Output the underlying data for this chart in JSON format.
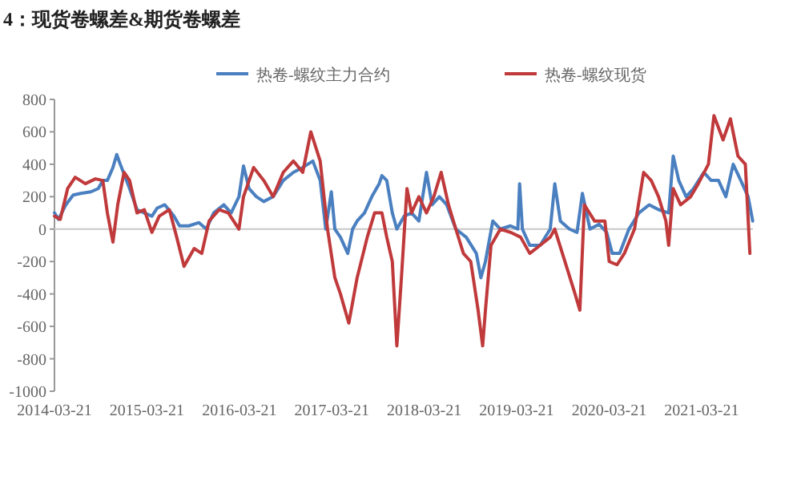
{
  "chart_data": {
    "type": "line",
    "title": "4：现货卷螺差&期货卷螺差",
    "legend": "top",
    "xlim": [
      "2014-03-21",
      "2021-10-10"
    ],
    "xticks": [
      "2014-03-21",
      "2015-03-21",
      "2016-03-21",
      "2017-03-21",
      "2018-03-21",
      "2019-03-21",
      "2020-03-21",
      "2021-03-21"
    ],
    "ylim": [
      -1000,
      800
    ],
    "yticks": [
      -1000,
      -800,
      -600,
      -400,
      -200,
      0,
      200,
      400,
      600,
      800
    ],
    "ref_lines": [
      {
        "axis": "y",
        "value": 0,
        "color": "#c8c8c8"
      }
    ],
    "series": [
      {
        "name": "热卷-螺纹主力合约",
        "color": "#4a7fc0",
        "x": [
          "2014-03-21",
          "2014-04-06",
          "2014-05-05",
          "2014-06-03",
          "2014-07-03",
          "2014-08-12",
          "2014-09-10",
          "2014-09-28",
          "2014-10-16",
          "2014-11-07",
          "2014-11-22",
          "2014-12-06",
          "2014-12-21",
          "2015-01-12",
          "2015-02-10",
          "2015-03-11",
          "2015-04-10",
          "2015-05-01",
          "2015-05-31",
          "2015-07-06",
          "2015-07-28",
          "2015-09-03",
          "2015-10-13",
          "2015-11-11",
          "2015-12-10",
          "2016-01-19",
          "2016-02-17",
          "2016-03-19",
          "2016-04-06",
          "2016-04-28",
          "2016-05-27",
          "2016-06-25",
          "2016-08-01",
          "2016-09-10",
          "2016-10-20",
          "2016-11-26",
          "2017-01-05",
          "2017-02-03",
          "2017-02-25",
          "2017-03-19",
          "2017-04-02",
          "2017-04-24",
          "2017-05-23",
          "2017-06-11",
          "2017-06-29",
          "2017-07-28",
          "2017-08-26",
          "2017-09-24",
          "2017-10-05",
          "2017-10-24",
          "2017-11-15",
          "2017-12-03",
          "2018-01-01",
          "2018-01-30",
          "2018-02-28",
          "2018-03-30",
          "2018-04-21",
          "2018-05-20",
          "2018-06-18",
          "2018-07-24",
          "2018-09-03",
          "2018-10-13",
          "2018-10-31",
          "2018-11-18",
          "2018-12-17",
          "2019-01-16",
          "2019-02-25",
          "2019-03-26",
          "2019-04-02",
          "2019-04-13",
          "2019-05-12",
          "2019-06-22",
          "2019-08-01",
          "2019-08-19",
          "2019-09-10",
          "2019-10-16",
          "2019-11-15",
          "2019-12-06",
          "2020-01-05",
          "2020-02-10",
          "2020-03-11",
          "2020-04-02",
          "2020-05-01",
          "2020-06-07",
          "2020-07-17",
          "2020-08-26",
          "2020-10-02",
          "2020-11-11",
          "2020-11-29",
          "2020-12-21",
          "2021-01-19",
          "2021-02-17",
          "2021-03-30",
          "2021-04-28",
          "2021-05-27",
          "2021-06-25",
          "2021-07-24",
          "2021-08-23",
          "2021-09-21",
          "2021-10-09"
        ],
        "values": [
          100,
          60,
          150,
          210,
          220,
          230,
          250,
          300,
          300,
          380,
          460,
          400,
          340,
          250,
          120,
          100,
          80,
          130,
          150,
          80,
          20,
          20,
          40,
          0,
          100,
          150,
          100,
          200,
          390,
          250,
          200,
          170,
          200,
          300,
          350,
          380,
          420,
          300,
          0,
          230,
          0,
          -50,
          -150,
          0,
          50,
          100,
          200,
          280,
          330,
          300,
          100,
          0,
          80,
          100,
          50,
          350,
          150,
          200,
          150,
          0,
          -50,
          -150,
          -300,
          -200,
          50,
          0,
          20,
          0,
          280,
          0,
          -100,
          -100,
          0,
          280,
          50,
          0,
          -20,
          220,
          0,
          30,
          -20,
          -150,
          -150,
          0,
          100,
          150,
          120,
          100,
          450,
          300,
          200,
          250,
          350,
          300,
          300,
          200,
          400,
          300,
          200,
          50
        ]
      },
      {
        "name": "热卷-螺纹现货",
        "color": "#c0393b",
        "x": [
          "2014-03-21",
          "2014-04-13",
          "2014-05-12",
          "2014-06-11",
          "2014-07-21",
          "2014-08-30",
          "2014-09-28",
          "2014-10-16",
          "2014-11-07",
          "2014-11-26",
          "2014-12-21",
          "2015-01-12",
          "2015-02-10",
          "2015-03-11",
          "2015-04-10",
          "2015-05-09",
          "2015-06-18",
          "2015-07-17",
          "2015-08-15",
          "2015-09-24",
          "2015-10-24",
          "2015-11-22",
          "2016-01-01",
          "2016-02-06",
          "2016-03-19",
          "2016-04-06",
          "2016-05-16",
          "2016-06-25",
          "2016-08-01",
          "2016-09-10",
          "2016-10-20",
          "2016-11-26",
          "2016-12-28",
          "2017-02-03",
          "2017-03-04",
          "2017-04-02",
          "2017-04-24",
          "2017-05-27",
          "2017-06-29",
          "2017-08-08",
          "2017-09-06",
          "2017-10-05",
          "2017-10-24",
          "2017-11-15",
          "2017-12-03",
          "2017-12-21",
          "2018-01-12",
          "2018-01-30",
          "2018-02-28",
          "2018-03-30",
          "2018-04-28",
          "2018-05-27",
          "2018-06-25",
          "2018-07-24",
          "2018-08-23",
          "2018-09-21",
          "2018-10-20",
          "2018-11-07",
          "2018-11-18",
          "2018-12-10",
          "2019-01-16",
          "2019-02-25",
          "2019-04-06",
          "2019-05-12",
          "2019-06-22",
          "2019-08-01",
          "2019-08-19",
          "2019-09-28",
          "2019-11-07",
          "2019-11-26",
          "2019-12-14",
          "2020-01-23",
          "2020-03-04",
          "2020-03-21",
          "2020-04-21",
          "2020-05-20",
          "2020-06-29",
          "2020-08-04",
          "2020-09-03",
          "2020-10-02",
          "2020-10-31",
          "2020-11-11",
          "2020-11-29",
          "2020-12-28",
          "2021-02-06",
          "2021-03-08",
          "2021-04-17",
          "2021-05-09",
          "2021-06-14",
          "2021-07-13",
          "2021-08-12",
          "2021-09-10",
          "2021-09-28"
        ],
        "values": [
          80,
          60,
          250,
          320,
          280,
          310,
          300,
          100,
          -80,
          150,
          350,
          300,
          100,
          120,
          -20,
          80,
          120,
          -50,
          -230,
          -120,
          -150,
          50,
          120,
          100,
          0,
          200,
          380,
          300,
          200,
          350,
          420,
          350,
          600,
          420,
          0,
          -300,
          -400,
          -580,
          -300,
          -50,
          100,
          100,
          -50,
          -200,
          -720,
          -300,
          250,
          100,
          200,
          100,
          200,
          350,
          150,
          0,
          -150,
          -200,
          -500,
          -720,
          -500,
          -100,
          0,
          -20,
          -50,
          -150,
          -100,
          -50,
          0,
          -200,
          -400,
          -500,
          150,
          50,
          50,
          -200,
          -220,
          -150,
          0,
          350,
          300,
          200,
          50,
          -100,
          250,
          150,
          200,
          280,
          400,
          700,
          550,
          680,
          450,
          400,
          -150
        ]
      }
    ]
  }
}
